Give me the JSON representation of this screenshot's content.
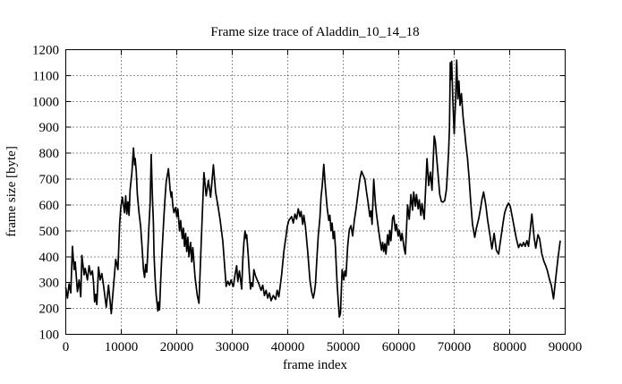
{
  "chart_data": {
    "type": "line",
    "title": "Frame size trace of Aladdin_10_14_18",
    "xlabel": "frame index",
    "ylabel": "frame size [byte]",
    "xlim": [
      0,
      90000
    ],
    "ylim": [
      100,
      1200
    ],
    "x_ticks": [
      0,
      10000,
      20000,
      30000,
      40000,
      50000,
      60000,
      70000,
      80000,
      90000
    ],
    "y_ticks": [
      100,
      200,
      300,
      400,
      500,
      600,
      700,
      800,
      900,
      1000,
      1100,
      1200
    ],
    "grid": true,
    "grid_style": "dotted",
    "legend_position": "none",
    "line_color": "#000000",
    "background_color": "#ffffff",
    "series": [
      {
        "name": "frame size",
        "points": [
          [
            0,
            280
          ],
          [
            300,
            240
          ],
          [
            600,
            295
          ],
          [
            900,
            260
          ],
          [
            1200,
            440
          ],
          [
            1500,
            350
          ],
          [
            1700,
            380
          ],
          [
            2100,
            265
          ],
          [
            2400,
            310
          ],
          [
            2700,
            245
          ],
          [
            2900,
            405
          ],
          [
            3300,
            330
          ],
          [
            3500,
            355
          ],
          [
            3900,
            310
          ],
          [
            4200,
            365
          ],
          [
            4500,
            330
          ],
          [
            4800,
            345
          ],
          [
            5000,
            300
          ],
          [
            5200,
            225
          ],
          [
            5400,
            255
          ],
          [
            5600,
            215
          ],
          [
            5900,
            360
          ],
          [
            6200,
            310
          ],
          [
            6500,
            335
          ],
          [
            6800,
            290
          ],
          [
            7000,
            255
          ],
          [
            7300,
            205
          ],
          [
            7700,
            290
          ],
          [
            8000,
            225
          ],
          [
            8200,
            180
          ],
          [
            8600,
            285
          ],
          [
            9000,
            390
          ],
          [
            9400,
            350
          ],
          [
            9700,
            525
          ],
          [
            9900,
            585
          ],
          [
            10200,
            630
          ],
          [
            10400,
            600
          ],
          [
            10600,
            570
          ],
          [
            10800,
            635
          ],
          [
            11000,
            565
          ],
          [
            11200,
            612
          ],
          [
            11400,
            560
          ],
          [
            11600,
            660
          ],
          [
            11900,
            720
          ],
          [
            12200,
            820
          ],
          [
            12400,
            755
          ],
          [
            12500,
            780
          ],
          [
            12700,
            730
          ],
          [
            12900,
            640
          ],
          [
            13200,
            570
          ],
          [
            13500,
            515
          ],
          [
            13800,
            420
          ],
          [
            14000,
            350
          ],
          [
            14200,
            320
          ],
          [
            14400,
            370
          ],
          [
            14600,
            340
          ],
          [
            14800,
            430
          ],
          [
            15000,
            525
          ],
          [
            15200,
            605
          ],
          [
            15400,
            795
          ],
          [
            15600,
            640
          ],
          [
            15800,
            525
          ],
          [
            15900,
            410
          ],
          [
            16100,
            315
          ],
          [
            16300,
            250
          ],
          [
            16600,
            190
          ],
          [
            16750,
            225
          ],
          [
            16900,
            195
          ],
          [
            17100,
            305
          ],
          [
            17300,
            400
          ],
          [
            17500,
            480
          ],
          [
            17700,
            560
          ],
          [
            17900,
            630
          ],
          [
            18100,
            690
          ],
          [
            18500,
            740
          ],
          [
            18800,
            660
          ],
          [
            19000,
            630
          ],
          [
            19100,
            650
          ],
          [
            19300,
            595
          ],
          [
            19500,
            570
          ],
          [
            19800,
            590
          ],
          [
            20000,
            555
          ],
          [
            20200,
            585
          ],
          [
            20500,
            500
          ],
          [
            20700,
            540
          ],
          [
            21000,
            470
          ],
          [
            21200,
            510
          ],
          [
            21400,
            440
          ],
          [
            21600,
            490
          ],
          [
            21800,
            420
          ],
          [
            22000,
            475
          ],
          [
            22200,
            400
          ],
          [
            22500,
            455
          ],
          [
            22700,
            380
          ],
          [
            22900,
            435
          ],
          [
            23300,
            320
          ],
          [
            23700,
            250
          ],
          [
            24000,
            220
          ],
          [
            24400,
            450
          ],
          [
            24900,
            725
          ],
          [
            25300,
            635
          ],
          [
            25700,
            695
          ],
          [
            26100,
            630
          ],
          [
            26600,
            755
          ],
          [
            27000,
            650
          ],
          [
            27400,
            600
          ],
          [
            27800,
            545
          ],
          [
            28300,
            460
          ],
          [
            28900,
            285
          ],
          [
            29200,
            305
          ],
          [
            29500,
            290
          ],
          [
            29800,
            310
          ],
          [
            30000,
            295
          ],
          [
            30200,
            285
          ],
          [
            30500,
            330
          ],
          [
            30800,
            365
          ],
          [
            31000,
            305
          ],
          [
            31300,
            345
          ],
          [
            31700,
            275
          ],
          [
            31900,
            385
          ],
          [
            32100,
            455
          ],
          [
            32300,
            500
          ],
          [
            32500,
            470
          ],
          [
            32600,
            485
          ],
          [
            32900,
            400
          ],
          [
            33100,
            330
          ],
          [
            33300,
            275
          ],
          [
            33500,
            300
          ],
          [
            33700,
            285
          ],
          [
            33900,
            350
          ],
          [
            34200,
            325
          ],
          [
            34500,
            310
          ],
          [
            34800,
            295
          ],
          [
            35200,
            270
          ],
          [
            35500,
            290
          ],
          [
            35800,
            250
          ],
          [
            36100,
            270
          ],
          [
            36400,
            240
          ],
          [
            36700,
            260
          ],
          [
            37000,
            230
          ],
          [
            37400,
            250
          ],
          [
            37800,
            235
          ],
          [
            38100,
            270
          ],
          [
            38400,
            245
          ],
          [
            38900,
            330
          ],
          [
            39300,
            420
          ],
          [
            39700,
            480
          ],
          [
            39900,
            515
          ],
          [
            40200,
            540
          ],
          [
            40700,
            555
          ],
          [
            41000,
            530
          ],
          [
            41300,
            565
          ],
          [
            41600,
            545
          ],
          [
            41900,
            585
          ],
          [
            42200,
            555
          ],
          [
            42400,
            575
          ],
          [
            42700,
            525
          ],
          [
            42900,
            560
          ],
          [
            43200,
            515
          ],
          [
            43600,
            420
          ],
          [
            44000,
            310
          ],
          [
            44300,
            265
          ],
          [
            44600,
            240
          ],
          [
            44800,
            260
          ],
          [
            45000,
            295
          ],
          [
            45300,
            410
          ],
          [
            45500,
            480
          ],
          [
            45800,
            550
          ],
          [
            46000,
            630
          ],
          [
            46200,
            670
          ],
          [
            46500,
            757
          ],
          [
            46800,
            665
          ],
          [
            47100,
            590
          ],
          [
            47400,
            540
          ],
          [
            47600,
            560
          ],
          [
            47800,
            500
          ],
          [
            48000,
            530
          ],
          [
            48200,
            470
          ],
          [
            48400,
            497
          ],
          [
            48600,
            435
          ],
          [
            48800,
            340
          ],
          [
            48900,
            295
          ],
          [
            49100,
            230
          ],
          [
            49300,
            167
          ],
          [
            49500,
            180
          ],
          [
            49800,
            350
          ],
          [
            50100,
            310
          ],
          [
            50300,
            345
          ],
          [
            50500,
            325
          ],
          [
            50800,
            440
          ],
          [
            51100,
            505
          ],
          [
            51400,
            520
          ],
          [
            51700,
            480
          ],
          [
            52000,
            540
          ],
          [
            52300,
            583
          ],
          [
            52700,
            650
          ],
          [
            53000,
            700
          ],
          [
            53300,
            730
          ],
          [
            53600,
            715
          ],
          [
            53900,
            700
          ],
          [
            54200,
            650
          ],
          [
            54500,
            607
          ],
          [
            54800,
            555
          ],
          [
            55000,
            577
          ],
          [
            55200,
            525
          ],
          [
            55500,
            700
          ],
          [
            55800,
            605
          ],
          [
            56000,
            565
          ],
          [
            56300,
            515
          ],
          [
            56600,
            468
          ],
          [
            56900,
            425
          ],
          [
            57100,
            455
          ],
          [
            57300,
            420
          ],
          [
            57500,
            450
          ],
          [
            57700,
            410
          ],
          [
            58000,
            485
          ],
          [
            58200,
            445
          ],
          [
            58400,
            502
          ],
          [
            58600,
            462
          ],
          [
            58900,
            550
          ],
          [
            59100,
            560
          ],
          [
            59400,
            500
          ],
          [
            59600,
            525
          ],
          [
            59900,
            480
          ],
          [
            60100,
            502
          ],
          [
            60400,
            462
          ],
          [
            60600,
            490
          ],
          [
            61000,
            430
          ],
          [
            61200,
            410
          ],
          [
            61600,
            600
          ],
          [
            61900,
            545
          ],
          [
            62200,
            640
          ],
          [
            62500,
            580
          ],
          [
            62700,
            650
          ],
          [
            63000,
            595
          ],
          [
            63200,
            640
          ],
          [
            63500,
            585
          ],
          [
            63700,
            620
          ],
          [
            64000,
            560
          ],
          [
            64200,
            605
          ],
          [
            64600,
            545
          ],
          [
            65100,
            779
          ],
          [
            65400,
            675
          ],
          [
            65700,
            727
          ],
          [
            66000,
            657
          ],
          [
            66400,
            866
          ],
          [
            66600,
            845
          ],
          [
            66900,
            768
          ],
          [
            67200,
            690
          ],
          [
            67400,
            640
          ],
          [
            67700,
            613
          ],
          [
            68000,
            611
          ],
          [
            68300,
            617
          ],
          [
            68600,
            660
          ],
          [
            68800,
            730
          ],
          [
            69000,
            810
          ],
          [
            69150,
            900
          ],
          [
            69300,
            1150
          ],
          [
            69450,
            1085
          ],
          [
            69550,
            1155
          ],
          [
            69750,
            1010
          ],
          [
            70000,
            875
          ],
          [
            70250,
            1005
          ],
          [
            70450,
            1160
          ],
          [
            70650,
            1010
          ],
          [
            70850,
            1079
          ],
          [
            71050,
            985
          ],
          [
            71300,
            1030
          ],
          [
            71600,
            940
          ],
          [
            71900,
            880
          ],
          [
            72100,
            835
          ],
          [
            72400,
            780
          ],
          [
            72700,
            700
          ],
          [
            73000,
            605
          ],
          [
            73300,
            525
          ],
          [
            73700,
            475
          ],
          [
            74000,
            510
          ],
          [
            74400,
            545
          ],
          [
            74700,
            580
          ],
          [
            75000,
            620
          ],
          [
            75300,
            650
          ],
          [
            75700,
            600
          ],
          [
            76000,
            545
          ],
          [
            76400,
            490
          ],
          [
            76800,
            430
          ],
          [
            77200,
            490
          ],
          [
            77600,
            425
          ],
          [
            78000,
            410
          ],
          [
            78400,
            470
          ],
          [
            78800,
            530
          ],
          [
            79100,
            570
          ],
          [
            79400,
            590
          ],
          [
            79800,
            607
          ],
          [
            80100,
            595
          ],
          [
            80500,
            550
          ],
          [
            80800,
            515
          ],
          [
            81200,
            470
          ],
          [
            81600,
            435
          ],
          [
            81900,
            450
          ],
          [
            82200,
            440
          ],
          [
            82500,
            455
          ],
          [
            82800,
            440
          ],
          [
            83100,
            462
          ],
          [
            83400,
            440
          ],
          [
            84000,
            565
          ],
          [
            84400,
            475
          ],
          [
            84700,
            433
          ],
          [
            85100,
            485
          ],
          [
            85400,
            468
          ],
          [
            85800,
            410
          ],
          [
            86200,
            380
          ],
          [
            86500,
            365
          ],
          [
            86800,
            345
          ],
          [
            87200,
            310
          ],
          [
            87500,
            290
          ],
          [
            87900,
            237
          ],
          [
            88300,
            317
          ],
          [
            88700,
            393
          ],
          [
            89100,
            460
          ]
        ]
      }
    ]
  }
}
